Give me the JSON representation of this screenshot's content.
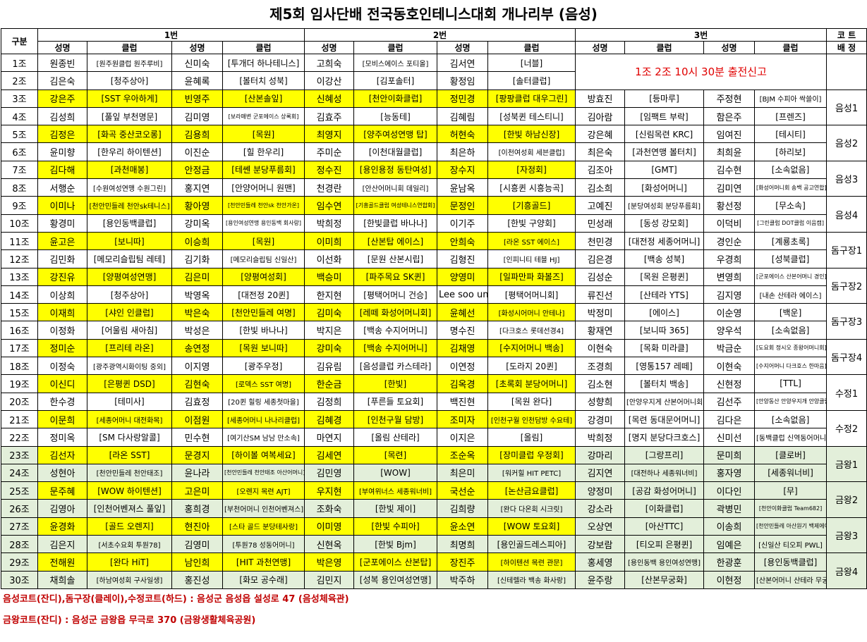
{
  "title": "제5회 임사단배 전국동호인테니스대회 개나리부 (음성)",
  "header": {
    "group": "구분",
    "slots": [
      "1번",
      "2번",
      "3번"
    ],
    "court_top": "코 트",
    "court_bottom": "배 정",
    "name": "성명",
    "club": "클럽"
  },
  "notice": "1조 2조 10시 30분 출전신고",
  "rows": [
    {
      "g": "1조",
      "c": [
        [
          "원종빈",
          "[원주원클럽 원주루비]"
        ],
        [
          "신미숙",
          "[투개더 하나테니스]"
        ],
        [
          "고희숙",
          "[모비스에이스 포티올]"
        ],
        [
          "김서연",
          "[너블]"
        ],
        [
          "",
          ""
        ],
        [
          "",
          ""
        ],
        [
          "",
          ""
        ],
        [
          "",
          ""
        ]
      ]
    },
    {
      "g": "2조",
      "c": [
        [
          "김은숙",
          "[청주상아]"
        ],
        [
          "윤혜록",
          "[볼터치 성북]"
        ],
        [
          "이강산",
          "[김포솔터]"
        ],
        [
          "황정임",
          "[솔터클럽]"
        ],
        [
          "",
          ""
        ],
        [
          "",
          ""
        ],
        [
          "",
          ""
        ],
        [
          "",
          ""
        ]
      ]
    },
    {
      "g": "3조",
      "c": [
        [
          "강은주",
          "[SST 우아하게]"
        ],
        [
          "빈영주",
          "[산본솔잎]"
        ],
        [
          "신혜성",
          "[천안이화클럽]"
        ],
        [
          "정민경",
          "[팡팡클럽 대우그린]"
        ],
        [
          "방효진",
          "[등마루]"
        ],
        [
          "주정현",
          "[BJM 수피아 싹쓸이]"
        ]
      ]
    },
    {
      "g": "4조",
      "c": [
        [
          "김성희",
          "[풀잎 부천명문]"
        ],
        [
          "김미영",
          "[보라매변 군포에이스 상록회]"
        ],
        [
          "김효주",
          "[능동테]"
        ],
        [
          "김혜림",
          "[성북퀸 테스티니]"
        ],
        [
          "김아람",
          "[임팩트 부락]"
        ],
        [
          "함은주",
          "[프렌즈]"
        ]
      ]
    },
    {
      "g": "5조",
      "c": [
        [
          "김정은",
          "[화곡 중산코오롱]"
        ],
        [
          "김용희",
          "[목원]"
        ],
        [
          "최영지",
          "[양주여성연맹 탑]"
        ],
        [
          "허현숙",
          "[한빛 하남신장]"
        ],
        [
          "강은혜",
          "[신림목련 KRC]"
        ],
        [
          "임여진",
          "[테시티]"
        ]
      ]
    },
    {
      "g": "6조",
      "c": [
        [
          "윤미향",
          "[한우리 하이텐션]"
        ],
        [
          "이진순",
          "[힐 한우리]"
        ],
        [
          "주미순",
          "[이천대월클럽]"
        ],
        [
          "최은하",
          "[이천여성회 세븐클럽]"
        ],
        [
          "최은숙",
          "[과천연맹 볼터치]"
        ],
        [
          "최희윤",
          "[하리보]"
        ]
      ]
    },
    {
      "g": "7조",
      "c": [
        [
          "김다해",
          "[과천매봉]"
        ],
        [
          "안정금",
          "[테쎈 분당푸름회]"
        ],
        [
          "정수진",
          "[용인용정 동탄여성]"
        ],
        [
          "장수지",
          "[자정회]"
        ],
        [
          "김조아",
          "[GMT]"
        ],
        [
          "김수현",
          "[소속없음]"
        ]
      ]
    },
    {
      "g": "8조",
      "c": [
        [
          "서행순",
          "[수원여성연맹 수원그린]"
        ],
        [
          "홍지연",
          "[안양어머니 원맨]"
        ],
        [
          "천경란",
          "[안산어머니회 데일리]"
        ],
        [
          "윤남옥",
          "[시흥퀸 시흥능곡]"
        ],
        [
          "김소희",
          "[화성어머니]"
        ],
        [
          "김미연",
          "[화성어머니회 송백 공고연합]"
        ]
      ]
    },
    {
      "g": "9조",
      "c": [
        [
          "이미나",
          "[천안민들레 천안sk테니스]"
        ],
        [
          "황아영",
          "[천안민들레 천안sk 천안가온]"
        ],
        [
          "임수연",
          "[기흥골드클럽 여성테니스연합회]"
        ],
        [
          "문정인",
          "[기흥골드]"
        ],
        [
          "고예진",
          "[분당여성회 분당푸름회]"
        ],
        [
          "황선정",
          "[무소속]"
        ]
      ]
    },
    {
      "g": "10조",
      "c": [
        [
          "황경미",
          "[용인동백클럽]"
        ],
        [
          "강미옥",
          "[용인여성연맹 용인동백 회사랑]"
        ],
        [
          "박희정",
          "[한빛클럽 바나나]"
        ],
        [
          "이기주",
          "[한빛 구양회]"
        ],
        [
          "민성래",
          "[동성 강모회]"
        ],
        [
          "이덕비",
          "[그린클럽 DOT클럽 이음캠]"
        ]
      ]
    },
    {
      "g": "11조",
      "c": [
        [
          "윤고은",
          "[보니따]"
        ],
        [
          "이승희",
          "[목원]"
        ],
        [
          "이미희",
          "[산본탑 에이스]"
        ],
        [
          "안희숙",
          "[라온 SST 에이스]"
        ],
        [
          "천민경",
          "[대전정 세종어머니]"
        ],
        [
          "경인순",
          "[계룡초록]"
        ]
      ]
    },
    {
      "g": "12조",
      "c": [
        [
          "김민화",
          "[메모리슬립팀 레테]"
        ],
        [
          "김기화",
          "[메모리슬립팀 신일산]"
        ],
        [
          "이선화",
          "[문원 산본시립]"
        ],
        [
          "김형진",
          "[인피니티 테블 HJ]"
        ],
        [
          "김은경",
          "[백송 성북]"
        ],
        [
          "우경희",
          "[성북클럽]"
        ]
      ]
    },
    {
      "g": "13조",
      "c": [
        [
          "강진유",
          "[양평여성연맹]"
        ],
        [
          "김은미",
          "[양평여성회]"
        ],
        [
          "백승미",
          "[파주목요 SK퀸]"
        ],
        [
          "양영미",
          "[일파만파 화볼즈]"
        ],
        [
          "김성순",
          "[목원 은평퀸]"
        ],
        [
          "변영희",
          "[군포에이스 산본어머니 경인]"
        ]
      ]
    },
    {
      "g": "14조",
      "c": [
        [
          "이상희",
          "[청주상아]"
        ],
        [
          "박영옥",
          "[대전정 20퀸]"
        ],
        [
          "한지현",
          "[평택어머니 건승]"
        ],
        [
          "Lee soo un yu",
          "[평택어머니회]"
        ],
        [
          "류진선",
          "[산테라 YTS]"
        ],
        [
          "김지영",
          "[내손 산테라 에이스]"
        ]
      ]
    },
    {
      "g": "15조",
      "c": [
        [
          "이재희",
          "[샤인 인클럽]"
        ],
        [
          "박은숙",
          "[천안민들레 여명]"
        ],
        [
          "김미숙",
          "[레떼 화성어머니회]"
        ],
        [
          "윤혜선",
          "[화성시어머니 안테나]"
        ],
        [
          "박정미",
          "[에이스]"
        ],
        [
          "이순영",
          "[백운]"
        ]
      ]
    },
    {
      "g": "16조",
      "c": [
        [
          "이정화",
          "[어울림 새아침]"
        ],
        [
          "박성은",
          "[한빛 바나나]"
        ],
        [
          "박지은",
          "[백송 수지어머니]"
        ],
        [
          "명수진",
          "[다크호스 롯데선경4]"
        ],
        [
          "황재연",
          "[보니따 365]"
        ],
        [
          "양우석",
          "[소속없음]"
        ]
      ]
    },
    {
      "g": "17조",
      "c": [
        [
          "정미순",
          "[프리테 라온]"
        ],
        [
          "송연정",
          "[목원 보니따]"
        ],
        [
          "강미숙",
          "[백송 수지어머니]"
        ],
        [
          "김채영",
          "[수지어머니 백송]"
        ],
        [
          "이현숙",
          "[목화 미라클]"
        ],
        [
          "박금순",
          "[도요회 정시오 종왕어머니회]"
        ]
      ]
    },
    {
      "g": "18조",
      "c": [
        [
          "이정숙",
          "[광주광역시화이팅 중외]"
        ],
        [
          "이지영",
          "[광주우정]"
        ],
        [
          "김유림",
          "[음성클럽 카스테라]"
        ],
        [
          "이연정",
          "[도라지 20퀸]"
        ],
        [
          "조경희",
          "[영통157 레떼]"
        ],
        [
          "이현숙",
          "[수지어머니 다크호스 한마음]"
        ]
      ]
    },
    {
      "g": "19조",
      "c": [
        [
          "이신디",
          "[은평퀸 DSD]"
        ],
        [
          "김현숙",
          "[로덱스 SST 여명]"
        ],
        [
          "한순금",
          "[한빛]"
        ],
        [
          "김옥경",
          "[초록회 분당어머니]"
        ],
        [
          "김소현",
          "[볼터치 백송]"
        ],
        [
          "신현정",
          "[TTL]"
        ]
      ]
    },
    {
      "g": "20조",
      "c": [
        [
          "한수경",
          "[테미사]"
        ],
        [
          "김효정",
          "[20퀸 힐링 세종첫마을]"
        ],
        [
          "김정희",
          "[푸른들 토요회]"
        ],
        [
          "백진현",
          "[목원 완다]"
        ],
        [
          "성향희",
          "[안양우지게 산본어머니회]"
        ],
        [
          "김선주",
          "[안양동산 안양우지개 안양클럽]"
        ]
      ]
    },
    {
      "g": "21조",
      "c": [
        [
          "이문희",
          "[세종어머니 대전화목]"
        ],
        [
          "이점원",
          "[세종어머니 나나리클럽]"
        ],
        [
          "김혜경",
          "[인천구월 담방]"
        ],
        [
          "조미자",
          "[인천구월 인천담방 수요테]"
        ],
        [
          "강경미",
          "[목련 동대문어머니]"
        ],
        [
          "김다은",
          "[소속없음]"
        ]
      ]
    },
    {
      "g": "22조",
      "c": [
        [
          "정미옥",
          "[SM 다사랑알콜]"
        ],
        [
          "민수현",
          "[여기산SM 남남 만소속]"
        ],
        [
          "마연지",
          "[올림 산테라]"
        ],
        [
          "이지은",
          "[올림]"
        ],
        [
          "박희정",
          "[명지 분당다크호스]"
        ],
        [
          "신미선",
          "[동백클럽 신역동어머니회]"
        ]
      ]
    },
    {
      "g": "23조",
      "c": [
        [
          "김선자",
          "[라온 SST]"
        ],
        [
          "문경지",
          "[하이볼 여복세요]"
        ],
        [
          "김세연",
          "[목련]"
        ],
        [
          "조순옥",
          "[장미클럽 우정회]"
        ],
        [
          "강마리",
          "[그랑프리]"
        ],
        [
          "문미희",
          "[클로버]"
        ]
      ]
    },
    {
      "g": "24조",
      "c": [
        [
          "성현아",
          "[천안민들레 천안태조]"
        ],
        [
          "윤나라",
          "[천안민들레 천안태조 아산어머니]"
        ],
        [
          "김민영",
          "[WOW]"
        ],
        [
          "최은미",
          "[워커힐 HIT PETC]"
        ],
        [
          "김지연",
          "[대전하나 세종워너비]"
        ],
        [
          "홍자영",
          "[세종워너비]"
        ]
      ]
    },
    {
      "g": "25조",
      "c": [
        [
          "문주혜",
          "[WOW 하이텐션]"
        ],
        [
          "고은미",
          "[오렌지 목련 AJT]"
        ],
        [
          "우지현",
          "[부여위너스 세종워너비]"
        ],
        [
          "국선순",
          "[논산금요클럽]"
        ],
        [
          "양정미",
          "[공감 화성어머니]"
        ],
        [
          "이다인",
          "[무]"
        ]
      ]
    },
    {
      "g": "26조",
      "c": [
        [
          "김영아",
          "[인천어벤져스 풀잎]"
        ],
        [
          "홍희경",
          "[부천어머니 인천어벤져스]"
        ],
        [
          "조화숙",
          "[한빛 제이]"
        ],
        [
          "김희량",
          "[완다 다온회 시크릿]"
        ],
        [
          "강소라",
          "[이화클럽]"
        ],
        [
          "곽병민",
          "[천안이화클럽 Team682]"
        ]
      ]
    },
    {
      "g": "27조",
      "c": [
        [
          "윤경화",
          "[골드 오렌지]"
        ],
        [
          "현진아",
          "[스타 골드 분당테사랑]"
        ],
        [
          "이미영",
          "[한빛 수피아]"
        ],
        [
          "윤소연",
          "[WOW 토요회]"
        ],
        [
          "오상연",
          "[아산TTC]"
        ],
        [
          "이송희",
          "[천안민들레 아산원기 백제에이스]"
        ]
      ]
    },
    {
      "g": "28조",
      "c": [
        [
          "김은지",
          "[서초수요회 투원78]"
        ],
        [
          "김영미",
          "[투원78 성동어머니]"
        ],
        [
          "신현옥",
          "[한빛 Bjm]"
        ],
        [
          "최명희",
          "[용인골드레스피아]"
        ],
        [
          "강보람",
          "[티오피 은평퀸]"
        ],
        [
          "임예은",
          "[신일산 티오피 PWL]"
        ]
      ]
    },
    {
      "g": "29조",
      "c": [
        [
          "전해원",
          "[완다 HiT]"
        ],
        [
          "남인희",
          "[HIT 과천연맹]"
        ],
        [
          "박은영",
          "[군포에이스 산본탑]"
        ],
        [
          "장진주",
          "[하이텐션 목련 관문]"
        ],
        [
          "홍세영",
          "[용인동백 용인여성연맹]"
        ],
        [
          "한광훈",
          "[용인동백클럽]"
        ]
      ]
    },
    {
      "g": "30조",
      "c": [
        [
          "채희솔",
          "[하남여성회 구사일생]"
        ],
        [
          "홍진성",
          "[화모 공수래]"
        ],
        [
          "김민지",
          "[성복 용인여성연맹]"
        ],
        [
          "박주하",
          "[신테렐라 백송 화사랑]"
        ],
        [
          "윤주랑",
          "[산본무궁화]"
        ],
        [
          "이현정",
          "[산본어머니 산테라 무궁화]"
        ]
      ]
    }
  ],
  "courts": [
    {
      "label": "음성1",
      "span": 2,
      "start": 2
    },
    {
      "label": "음성2",
      "span": 2,
      "start": 4
    },
    {
      "label": "음성3",
      "span": 2,
      "start": 6
    },
    {
      "label": "음성4",
      "span": 2,
      "start": 8
    },
    {
      "label": "돔구장1",
      "span": 2,
      "start": 10
    },
    {
      "label": "돔구장2",
      "span": 2,
      "start": 12
    },
    {
      "label": "돔구장3",
      "span": 2,
      "start": 14
    },
    {
      "label": "돔구장4",
      "span": 2,
      "start": 16
    },
    {
      "label": "수정1",
      "span": 2,
      "start": 18
    },
    {
      "label": "수정2",
      "span": 2,
      "start": 20
    },
    {
      "label": "금왕1",
      "span": 2,
      "start": 22
    },
    {
      "label": "금왕2",
      "span": 2,
      "start": 24
    },
    {
      "label": "금왕3",
      "span": 2,
      "start": 26
    },
    {
      "label": "금왕4",
      "span": 2,
      "start": 28
    }
  ],
  "footer": [
    "음성코트(잔디),돔구장(클레이),수정코트(하드) : 음성군 음성읍 설성로 47 (음성체육관)",
    "금왕코트(잔디) : 음성군 금왕읍 무극로 370 (금왕생활체육공원)"
  ],
  "colors": {
    "highlight": "#ffff00",
    "green": "#e3efda",
    "footer": "#c00000",
    "notice": "#e00000"
  }
}
